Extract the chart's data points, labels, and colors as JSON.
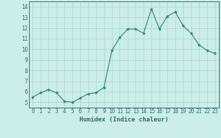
{
  "x": [
    0,
    1,
    2,
    3,
    4,
    5,
    6,
    7,
    8,
    9,
    10,
    11,
    12,
    13,
    14,
    15,
    16,
    17,
    18,
    19,
    20,
    21,
    22,
    23
  ],
  "y": [
    5.5,
    5.9,
    6.2,
    5.9,
    5.1,
    5.0,
    5.4,
    5.8,
    5.9,
    6.4,
    9.9,
    11.1,
    11.9,
    11.9,
    11.5,
    13.8,
    11.9,
    13.1,
    13.5,
    12.2,
    11.5,
    10.4,
    9.9,
    9.6
  ],
  "line_color": "#2e8b7a",
  "marker": "*",
  "marker_size": 3,
  "bg_color": "#cceee8",
  "grid_color": "#b0d8d0",
  "xlabel": "Humidex (Indice chaleur)",
  "xlim": [
    -0.5,
    23.5
  ],
  "ylim": [
    4.5,
    14.5
  ],
  "yticks": [
    5,
    6,
    7,
    8,
    9,
    10,
    11,
    12,
    13,
    14
  ],
  "xticks": [
    0,
    1,
    2,
    3,
    4,
    5,
    6,
    7,
    8,
    9,
    10,
    11,
    12,
    13,
    14,
    15,
    16,
    17,
    18,
    19,
    20,
    21,
    22,
    23
  ],
  "tick_color": "#2e6b6b",
  "label_fontsize": 6.5,
  "tick_fontsize": 5.5
}
